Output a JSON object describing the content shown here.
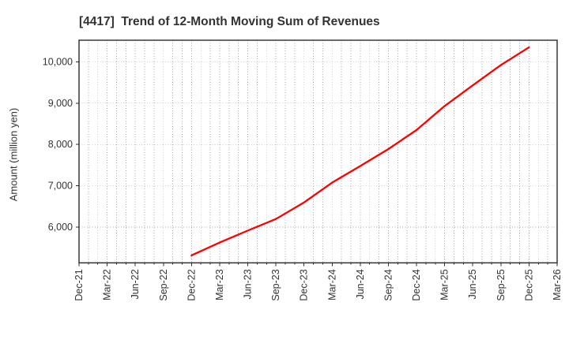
{
  "header": {
    "title": "[4417]  Trend of 12-Month Moving Sum of Revenues"
  },
  "chart_data": {
    "type": "line",
    "title": "[4417]  Trend of 12-Month Moving Sum of Revenues",
    "xlabel": "",
    "ylabel": "Amount (million yen)",
    "legend": "none",
    "grid": "dotted gray grid: vertical line every month, horizontal line every 1,000",
    "x_axis": {
      "tick_labels": [
        "Dec-21",
        "Mar-22",
        "Jun-22",
        "Sep-22",
        "Dec-22",
        "Mar-23",
        "Jun-23",
        "Sep-23",
        "Dec-23",
        "Mar-24",
        "Jun-24",
        "Sep-24",
        "Dec-24",
        "Mar-25",
        "Jun-25",
        "Sep-25",
        "Dec-25",
        "Mar-26"
      ],
      "tick_interval_months": 3,
      "total_months": 51,
      "label_rotation_deg": 90
    },
    "y_axis": {
      "tick_values": [
        6000,
        7000,
        8000,
        9000,
        10000
      ],
      "tick_labels": [
        "6,000",
        "7,000",
        "8,000",
        "9,000",
        "10,000"
      ],
      "ylim": [
        5140,
        10520
      ]
    },
    "series": [
      {
        "name": "12-Month Moving Sum of Revenues",
        "color": "#ff0000",
        "points": [
          {
            "label": "Dec-22",
            "month": 12,
            "value": 5320
          },
          {
            "label": "Mar-23",
            "month": 15,
            "value": 5630
          },
          {
            "label": "Jun-23",
            "month": 18,
            "value": 5920
          },
          {
            "label": "Sep-23",
            "month": 21,
            "value": 6200
          },
          {
            "label": "Dec-23",
            "month": 24,
            "value": 6600
          },
          {
            "label": "Mar-24",
            "month": 27,
            "value": 7080
          },
          {
            "label": "Jun-24",
            "month": 30,
            "value": 7480
          },
          {
            "label": "Sep-24",
            "month": 33,
            "value": 7890
          },
          {
            "label": "Dec-24",
            "month": 36,
            "value": 8350
          },
          {
            "label": "Mar-25",
            "month": 39,
            "value": 8930
          },
          {
            "label": "Jun-25",
            "month": 42,
            "value": 9430
          },
          {
            "label": "Sep-25",
            "month": 45,
            "value": 9920
          },
          {
            "label": "Dec-25",
            "month": 48,
            "value": 10350
          }
        ]
      }
    ],
    "colors": {
      "line": "#ff0000",
      "text": "#333333",
      "grid": "#a6a6a6",
      "axis_border": "#2b2b2b",
      "background": "#ffffff"
    }
  }
}
